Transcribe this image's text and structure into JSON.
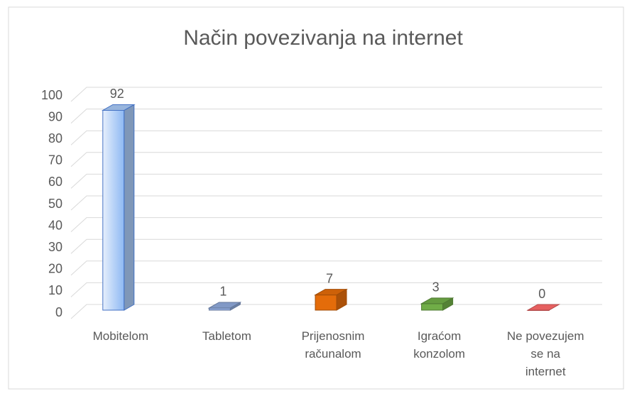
{
  "chart_data": {
    "type": "bar",
    "title": "Način povezivanja na internet",
    "categories": [
      "Mobitelom",
      "Tabletom",
      "Prijenosnim računalom",
      "Igraćom konzolom",
      "Ne povezujem se na internet"
    ],
    "values": [
      92,
      1,
      7,
      3,
      0
    ],
    "colors": [
      "#a9c9f5",
      "#8faadc",
      "#e46c0a",
      "#70ad47",
      "#ff6b6b"
    ],
    "ylim": [
      0,
      100
    ],
    "yticks": [
      0,
      10,
      20,
      30,
      40,
      50,
      60,
      70,
      80,
      90,
      100
    ],
    "grid": true
  }
}
